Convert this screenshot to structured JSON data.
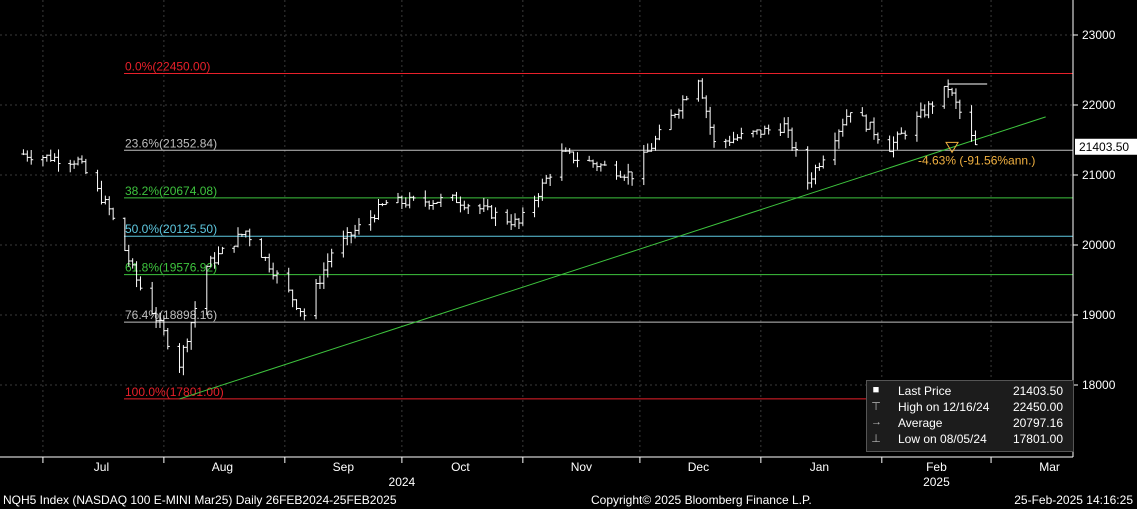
{
  "chart_data": {
    "type": "ohlc",
    "ylim": [
      17000,
      23500
    ],
    "y_ticks": [
      18000,
      19000,
      20000,
      21000,
      22000,
      23000
    ],
    "x_month_labels": [
      "Jul",
      "Aug",
      "Sep",
      "Oct",
      "Nov",
      "Dec",
      "Jan",
      "Feb",
      "Mar"
    ],
    "x_year_labels": [
      "2024",
      "2025"
    ],
    "grid": true,
    "last_price_label": "21403.50",
    "close_series": [
      {
        "month": "2024-06-26",
        "close": 21300
      },
      {
        "month": "2024-07-10",
        "close": 21200
      },
      {
        "month": "2024-07-18",
        "close": 20500
      },
      {
        "month": "2024-07-25",
        "close": 19500
      },
      {
        "month": "2024-08-05",
        "close": 18300
      },
      {
        "month": "2024-08-12",
        "close": 19700
      },
      {
        "month": "2024-08-22",
        "close": 20200
      },
      {
        "month": "2024-09-06",
        "close": 19000
      },
      {
        "month": "2024-09-13",
        "close": 19900
      },
      {
        "month": "2024-09-27",
        "close": 20600
      },
      {
        "month": "2024-10-15",
        "close": 20650
      },
      {
        "month": "2024-10-31",
        "close": 20300
      },
      {
        "month": "2024-11-11",
        "close": 21300
      },
      {
        "month": "2024-11-29",
        "close": 21000
      },
      {
        "month": "2024-12-16",
        "close": 22400
      },
      {
        "month": "2024-12-20",
        "close": 21450
      },
      {
        "month": "2025-01-07",
        "close": 21700
      },
      {
        "month": "2025-01-13",
        "close": 20900
      },
      {
        "month": "2025-01-24",
        "close": 21950
      },
      {
        "month": "2025-02-03",
        "close": 21400
      },
      {
        "month": "2025-02-18",
        "close": 22250
      },
      {
        "month": "2025-02-25",
        "close": 21403.5
      }
    ],
    "fib_levels": [
      {
        "label": "0.0%(22450.00)",
        "value": 22450,
        "color": "#e8202a"
      },
      {
        "label": "23.6%(21352.84)",
        "value": 21352.84,
        "color": "#bfbfbf"
      },
      {
        "label": "38.2%(20674.08)",
        "value": 20674.08,
        "color": "#3ec43e"
      },
      {
        "label": "50.0%(20125.50)",
        "value": 20125.5,
        "color": "#5ec8e0"
      },
      {
        "label": "61.8%(19576.92)",
        "value": 19576.92,
        "color": "#3ec43e"
      },
      {
        "label": "76.4%(18898.16)",
        "value": 18898.16,
        "color": "#bfbfbf"
      },
      {
        "label": "100.0%(17801.00)",
        "value": 17801,
        "color": "#e8202a"
      }
    ],
    "trendline": {
      "start": {
        "date": "2024-08-05",
        "value": 17801
      },
      "end": {
        "date": "2025-03-15",
        "value": 21830
      },
      "color": "#3ec43e"
    },
    "annotation": {
      "text": "-4.63% (-91.56%ann.)",
      "color": "#f0b040"
    }
  },
  "legend": {
    "items": [
      {
        "icon": "■",
        "label": "Last Price",
        "value": "21403.50"
      },
      {
        "icon": "⊤",
        "label": "High on 12/16/24",
        "value": "22450.00"
      },
      {
        "icon": "→",
        "label": "Average",
        "value": "20797.16"
      },
      {
        "icon": "⊥",
        "label": "Low on 08/05/24",
        "value": "17801.00"
      }
    ]
  },
  "footer": {
    "left": "NQH5 Index (NASDAQ 100 E-MINI Mar25)  Daily 26FEB2024-25FEB2025",
    "center": "Copyright© 2025 Bloomberg Finance L.P.",
    "right": "25-Feb-2025 14:16:25"
  }
}
